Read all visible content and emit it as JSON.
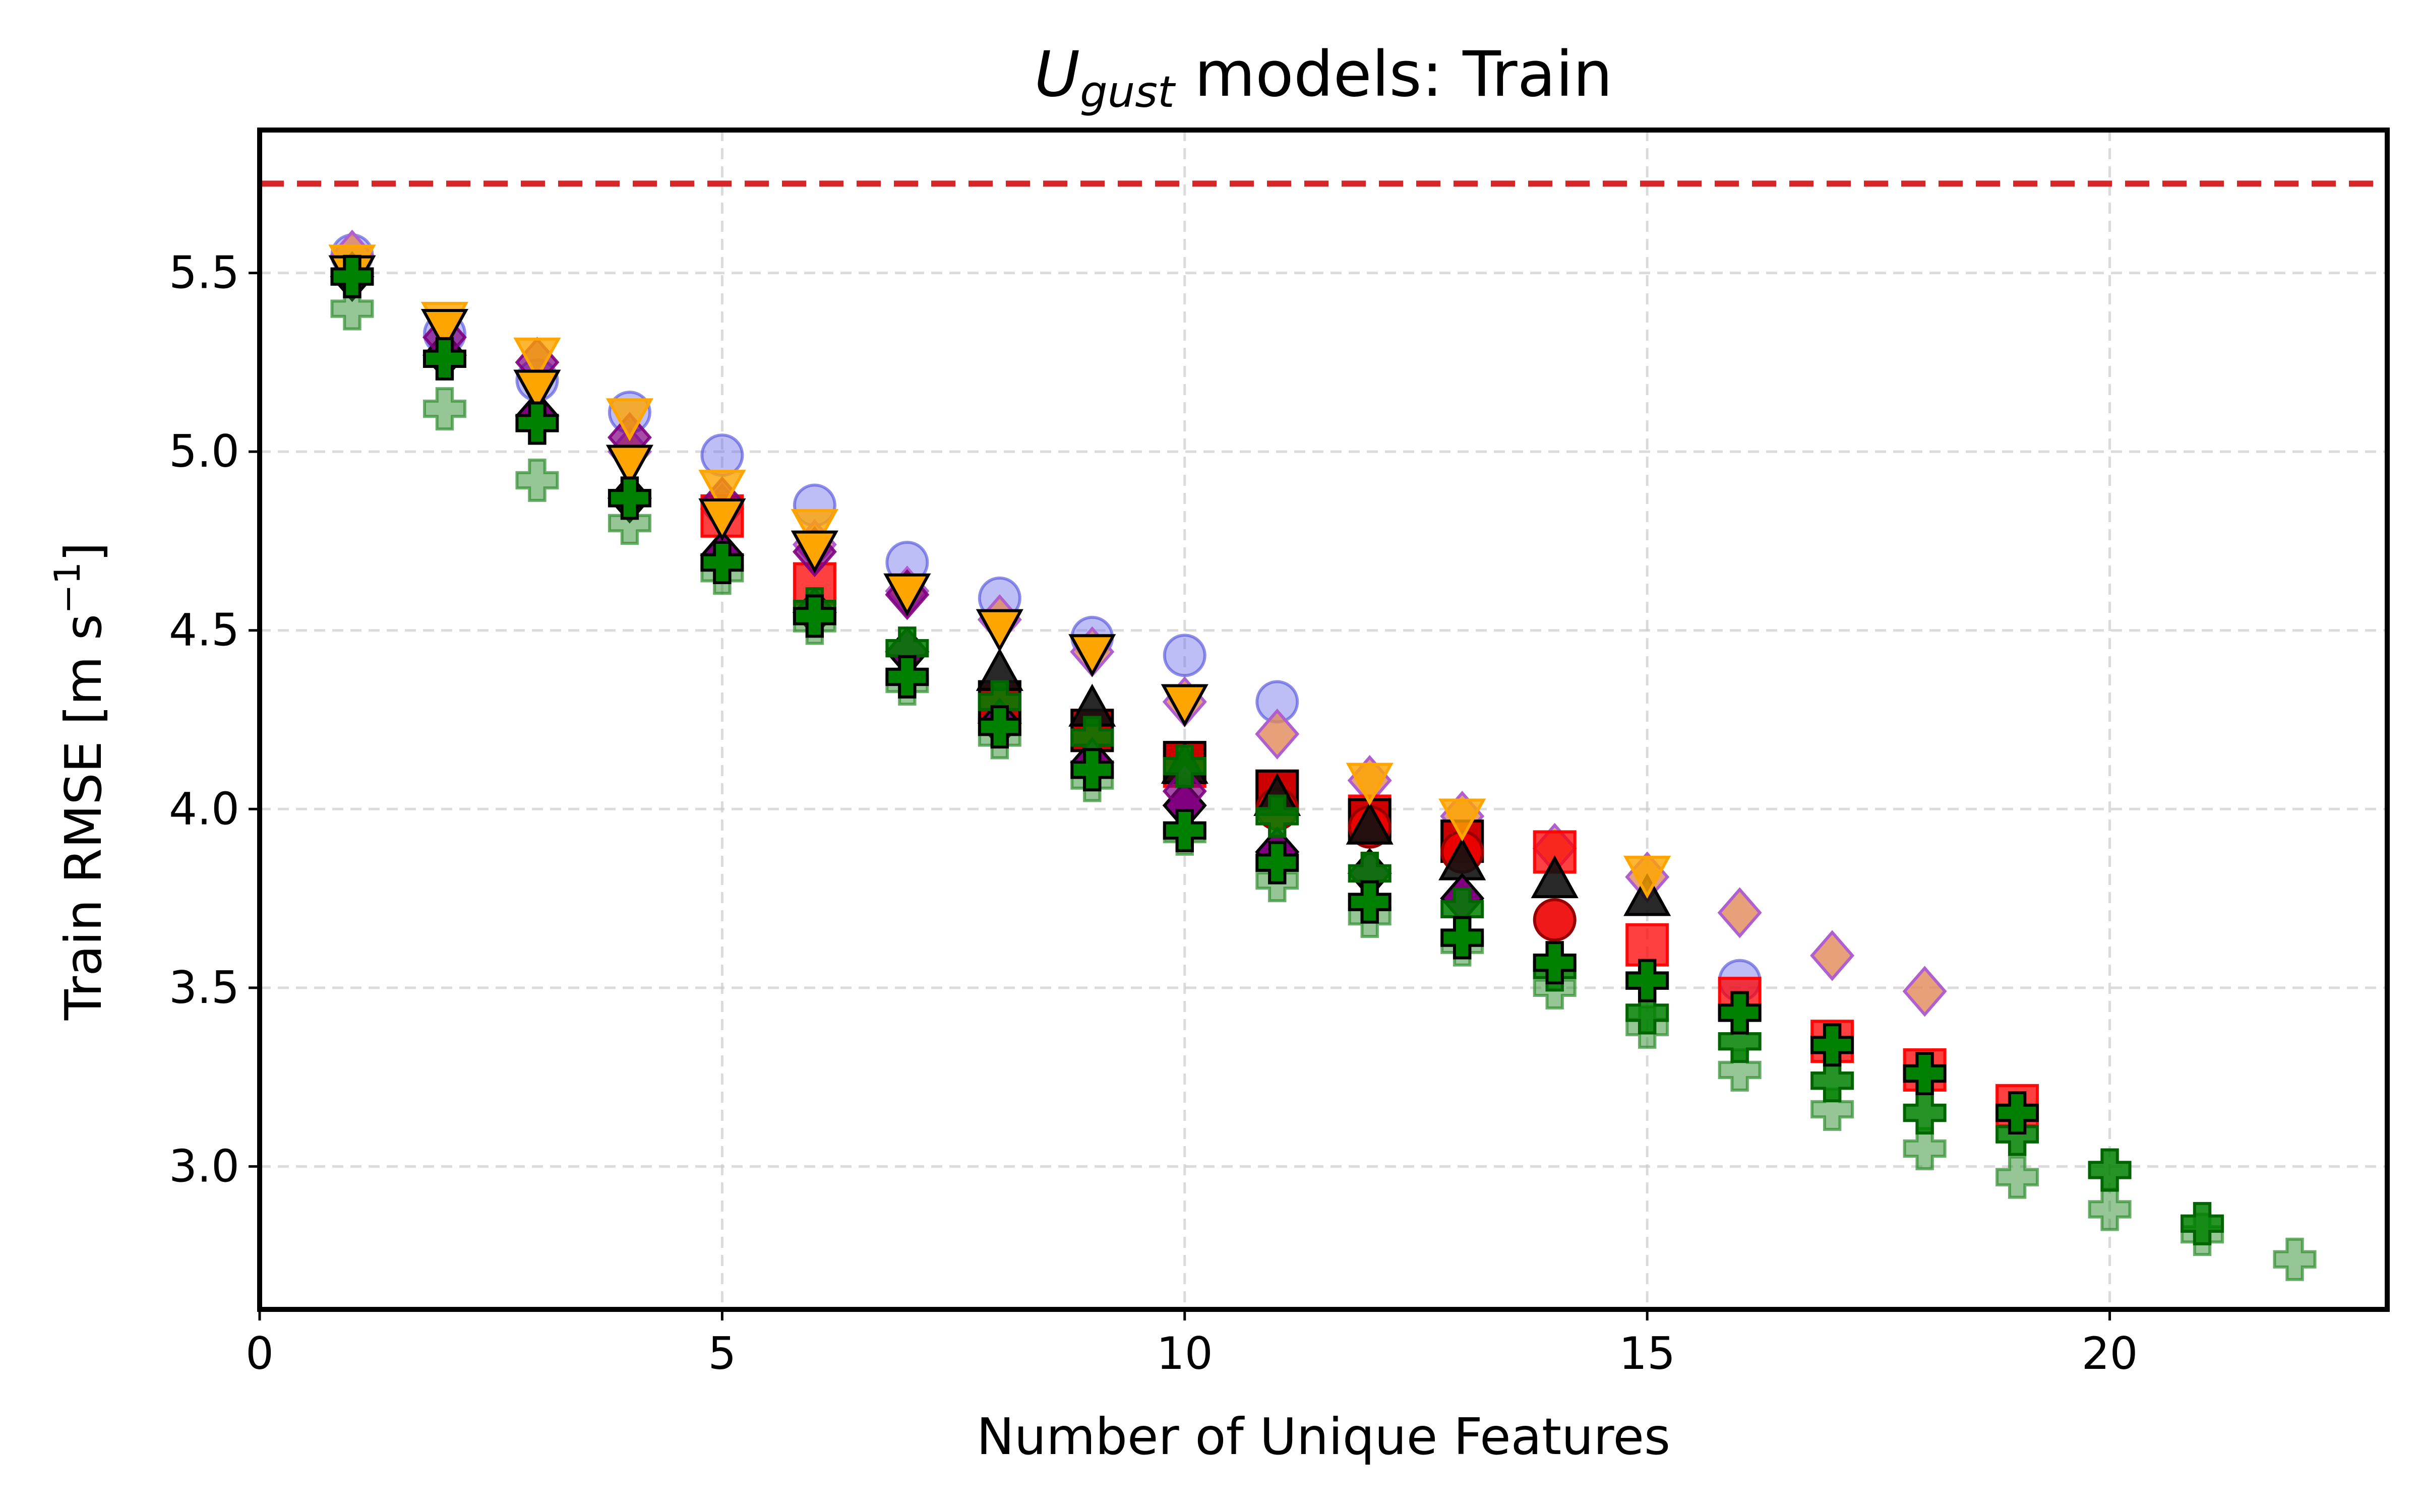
{
  "chart_data": {
    "type": "scatter",
    "title": {
      "prefix": "U",
      "subscript": "gust",
      "suffix": " models: Train"
    },
    "xlabel": "Number of Unique Features",
    "ylabel": {
      "main": "Train RMSE [m s",
      "sup": "−1",
      "close": "]"
    },
    "xlim": [
      0,
      23
    ],
    "ylim": [
      2.6,
      5.9
    ],
    "xticks": [
      0,
      5,
      10,
      15,
      20
    ],
    "yticks": [
      3.0,
      3.5,
      4.0,
      4.5,
      5.0,
      5.5
    ],
    "ytick_labels": [
      "3.0",
      "3.5",
      "4.0",
      "4.5",
      "5.0",
      "5.5"
    ],
    "grid": true,
    "reference_line": {
      "y": 5.75,
      "color": "#d62728",
      "style": "dashed"
    },
    "series": [
      {
        "marker": "circle",
        "color": "#6f6fee",
        "alpha": 0.45,
        "edge": "#5555dd",
        "points": [
          [
            1,
            5.55
          ],
          [
            2,
            5.33
          ],
          [
            3,
            5.2
          ],
          [
            4,
            5.11
          ],
          [
            5,
            4.99
          ],
          [
            6,
            4.85
          ],
          [
            7,
            4.69
          ],
          [
            8,
            4.59
          ],
          [
            9,
            4.48
          ],
          [
            10,
            4.43
          ],
          [
            11,
            4.3
          ],
          [
            16,
            3.52
          ]
        ]
      },
      {
        "marker": "diamond",
        "color": "#e08a5a",
        "alpha": 0.8,
        "edge": "#b05fcf",
        "points": [
          [
            1,
            5.55
          ],
          [
            4,
            5.0
          ],
          [
            5,
            4.84
          ],
          [
            6,
            4.74
          ],
          [
            7,
            4.61
          ],
          [
            8,
            4.53
          ],
          [
            9,
            4.44
          ],
          [
            10,
            4.3
          ],
          [
            11,
            4.21
          ],
          [
            12,
            4.08
          ],
          [
            13,
            3.98
          ],
          [
            14,
            3.89
          ],
          [
            15,
            3.81
          ],
          [
            16,
            3.71
          ],
          [
            17,
            3.59
          ],
          [
            18,
            3.49
          ]
        ]
      },
      {
        "marker": "square",
        "color": "#ff0000",
        "alpha": 0.75,
        "edge": "#ff0000",
        "points": [
          [
            5,
            4.82
          ],
          [
            6,
            4.63
          ],
          [
            8,
            4.3
          ],
          [
            9,
            4.22
          ],
          [
            10,
            4.12
          ],
          [
            11,
            4.05
          ],
          [
            12,
            3.98
          ],
          [
            13,
            3.91
          ],
          [
            14,
            3.88
          ],
          [
            15,
            3.62
          ],
          [
            16,
            3.47
          ],
          [
            17,
            3.35
          ],
          [
            18,
            3.27
          ],
          [
            19,
            3.17
          ]
        ]
      },
      {
        "marker": "square",
        "color": "#cc0000",
        "alpha": 1.0,
        "edge": "#000000",
        "points": [
          [
            8,
            4.3
          ],
          [
            9,
            4.22
          ],
          [
            10,
            4.13
          ],
          [
            11,
            4.05
          ],
          [
            12,
            3.97
          ],
          [
            13,
            3.91
          ]
        ]
      },
      {
        "marker": "circle",
        "color": "#ee0000",
        "alpha": 0.9,
        "edge": "#990000",
        "points": [
          [
            11,
            4.0
          ],
          [
            12,
            3.95
          ],
          [
            13,
            3.88
          ],
          [
            14,
            3.69
          ]
        ]
      },
      {
        "marker": "triangle-up",
        "color": "#111111",
        "alpha": 0.9,
        "edge": "#000000",
        "points": [
          [
            8,
            4.38
          ],
          [
            9,
            4.28
          ],
          [
            10,
            4.12
          ],
          [
            11,
            4.03
          ],
          [
            12,
            3.95
          ],
          [
            13,
            3.85
          ],
          [
            14,
            3.8
          ],
          [
            15,
            3.75
          ]
        ]
      },
      {
        "marker": "diamond",
        "color": "#800080",
        "alpha": 1.0,
        "edge": "#000000",
        "points": [
          [
            1,
            5.49
          ],
          [
            2,
            5.27
          ],
          [
            3,
            5.1
          ],
          [
            4,
            4.87
          ],
          [
            5,
            4.71
          ],
          [
            6,
            4.55
          ],
          [
            7,
            4.44
          ],
          [
            8,
            4.24
          ],
          [
            9,
            4.13
          ],
          [
            10,
            4.01
          ],
          [
            11,
            3.88
          ],
          [
            12,
            3.82
          ],
          [
            13,
            3.75
          ]
        ]
      },
      {
        "marker": "diamond",
        "color": "#800080",
        "alpha": 0.7,
        "edge": "#800080",
        "points": [
          [
            2,
            5.32
          ],
          [
            3,
            5.25
          ],
          [
            4,
            5.04
          ],
          [
            5,
            4.86
          ],
          [
            6,
            4.72
          ],
          [
            7,
            4.6
          ],
          [
            10,
            4.05
          ]
        ]
      },
      {
        "marker": "triangle-down",
        "color": "#ffa500",
        "alpha": 0.8,
        "edge": "#ffa500",
        "points": [
          [
            1,
            5.53
          ],
          [
            2,
            5.37
          ],
          [
            3,
            5.27
          ],
          [
            4,
            5.1
          ],
          [
            5,
            4.9
          ],
          [
            6,
            4.79
          ],
          [
            12,
            4.08
          ],
          [
            13,
            3.98
          ],
          [
            15,
            3.82
          ]
        ]
      },
      {
        "marker": "triangle-down",
        "color": "#ffa500",
        "alpha": 1.0,
        "edge": "#000000",
        "points": [
          [
            1,
            5.5
          ],
          [
            2,
            5.35
          ],
          [
            3,
            5.18
          ],
          [
            4,
            4.97
          ],
          [
            5,
            4.82
          ],
          [
            6,
            4.73
          ],
          [
            7,
            4.61
          ],
          [
            8,
            4.51
          ],
          [
            9,
            4.44
          ],
          [
            10,
            4.3
          ]
        ]
      },
      {
        "marker": "plus",
        "color": "#2e8b2e",
        "alpha": 0.5,
        "edge": "#2e8b2e",
        "points": [
          [
            1,
            5.4
          ],
          [
            2,
            5.12
          ],
          [
            3,
            4.92
          ],
          [
            4,
            4.8
          ],
          [
            5,
            4.66
          ],
          [
            6,
            4.52
          ],
          [
            7,
            4.35
          ],
          [
            8,
            4.2
          ],
          [
            9,
            4.08
          ],
          [
            10,
            3.93
          ],
          [
            11,
            3.8
          ],
          [
            12,
            3.7
          ],
          [
            13,
            3.62
          ],
          [
            14,
            3.5
          ],
          [
            15,
            3.39
          ],
          [
            16,
            3.27
          ],
          [
            17,
            3.16
          ],
          [
            18,
            3.05
          ],
          [
            19,
            2.97
          ],
          [
            20,
            2.88
          ],
          [
            21,
            2.81
          ],
          [
            22,
            2.74
          ]
        ]
      },
      {
        "marker": "plus",
        "color": "#008000",
        "alpha": 0.85,
        "edge": "#006400",
        "points": [
          [
            6,
            4.56
          ],
          [
            7,
            4.45
          ],
          [
            8,
            4.3
          ],
          [
            9,
            4.2
          ],
          [
            10,
            4.12
          ],
          [
            11,
            3.98
          ],
          [
            12,
            3.82
          ],
          [
            13,
            3.72
          ],
          [
            14,
            3.55
          ],
          [
            15,
            3.43
          ],
          [
            16,
            3.35
          ],
          [
            17,
            3.24
          ],
          [
            18,
            3.15
          ],
          [
            19,
            3.09
          ],
          [
            20,
            2.99
          ],
          [
            21,
            2.84
          ]
        ]
      },
      {
        "marker": "plus",
        "color": "#008000",
        "alpha": 1.0,
        "edge": "#000000",
        "points": [
          [
            1,
            5.49
          ],
          [
            2,
            5.26
          ],
          [
            3,
            5.08
          ],
          [
            4,
            4.87
          ],
          [
            5,
            4.69
          ],
          [
            6,
            4.54
          ],
          [
            7,
            4.37
          ],
          [
            8,
            4.23
          ],
          [
            9,
            4.11
          ],
          [
            10,
            3.94
          ],
          [
            11,
            3.85
          ],
          [
            12,
            3.74
          ],
          [
            13,
            3.64
          ],
          [
            14,
            3.57
          ],
          [
            15,
            3.52
          ],
          [
            16,
            3.43
          ],
          [
            17,
            3.34
          ],
          [
            18,
            3.26
          ],
          [
            19,
            3.15
          ]
        ]
      }
    ]
  }
}
